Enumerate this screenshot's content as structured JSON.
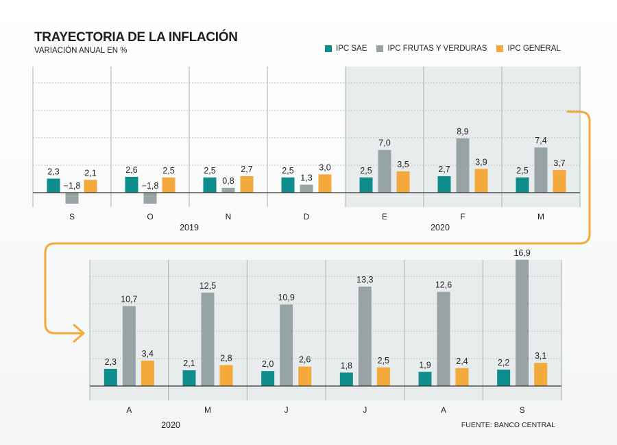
{
  "title": "TRAYECTORIA DE LA INFLACIÓN",
  "subtitle": "VARIACIÓN ANUAL EN %",
  "source": "FUENTE: BANCO CENTRAL",
  "colors": {
    "sae": "#0f8c8c",
    "frutas": "#98a3a6",
    "general": "#f3a93c",
    "arrow": "#f3a93c",
    "shade": "#e9ecec"
  },
  "legend": [
    {
      "label": "IPC SAE",
      "color": "#0f8c8c"
    },
    {
      "label": "IPC FRUTAS Y VERDURAS",
      "color": "#98a3a6"
    },
    {
      "label": "IPC GENERAL",
      "color": "#f3a93c"
    }
  ],
  "chart_data": [
    {
      "type": "bar",
      "categories": [
        "S",
        "O",
        "N",
        "D",
        "E",
        "F",
        "M"
      ],
      "year_labels": [
        "2019",
        "2020"
      ],
      "shaded_categories": [
        "E",
        "F",
        "M"
      ],
      "series": [
        {
          "name": "IPC SAE",
          "values": [
            2.3,
            2.6,
            2.5,
            2.5,
            2.5,
            2.7,
            2.5
          ]
        },
        {
          "name": "IPC FRUTAS Y VERDURAS",
          "values": [
            -1.8,
            -1.8,
            0.8,
            1.3,
            7.0,
            8.9,
            7.4
          ]
        },
        {
          "name": "IPC GENERAL",
          "values": [
            2.1,
            2.5,
            2.7,
            3.0,
            3.5,
            3.9,
            3.7
          ]
        }
      ]
    },
    {
      "type": "bar",
      "categories": [
        "A",
        "M",
        "J",
        "J",
        "A",
        "S"
      ],
      "year_labels": [
        "2020"
      ],
      "shaded_categories": [
        "A",
        "M",
        "J",
        "J",
        "A",
        "S"
      ],
      "series": [
        {
          "name": "IPC SAE",
          "values": [
            2.3,
            2.1,
            2.0,
            1.8,
            1.9,
            2.2
          ]
        },
        {
          "name": "IPC FRUTAS Y VERDURAS",
          "values": [
            10.7,
            12.5,
            10.9,
            13.3,
            12.6,
            16.9
          ]
        },
        {
          "name": "IPC GENERAL",
          "values": [
            3.4,
            2.8,
            2.6,
            2.5,
            2.4,
            3.1
          ]
        }
      ]
    }
  ]
}
